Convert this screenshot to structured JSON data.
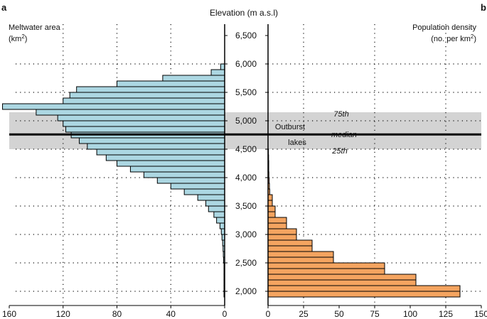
{
  "chart_data": [
    {
      "type": "bar",
      "orientation": "horizontal",
      "panel_label": "a",
      "title": "Meltwater area",
      "unit_base": "(km",
      "unit_sup": "2",
      "unit_end": ")",
      "xlim": [
        0,
        160
      ],
      "x_direction": "reversed",
      "xticks": [
        "160",
        "120",
        "80",
        "40",
        "0"
      ],
      "xtick_values": [
        160,
        120,
        80,
        40,
        0
      ],
      "color": "#acd7e2",
      "elevation_bins": [
        1950,
        2050,
        2150,
        2250,
        2350,
        2450,
        2550,
        2650,
        2750,
        2850,
        2950,
        3050,
        3150,
        3250,
        3350,
        3450,
        3550,
        3650,
        3750,
        3850,
        3950,
        4050,
        4150,
        4250,
        4350,
        4450,
        4550,
        4650,
        4750,
        4850,
        4950,
        5050,
        5150,
        5250,
        5350,
        5450,
        5550,
        5650,
        5750,
        5850,
        5950,
        6050
      ],
      "values": [
        0.5,
        0.5,
        0.5,
        0.5,
        0.5,
        0.5,
        0.8,
        1,
        1.2,
        1.5,
        2,
        2.5,
        3.5,
        6,
        8,
        12,
        14,
        20,
        30,
        40,
        50,
        60,
        70,
        80,
        88,
        95,
        102,
        108,
        114,
        118,
        120,
        124,
        140,
        165,
        120,
        115,
        110,
        80,
        46,
        10,
        3,
        0
      ]
    },
    {
      "type": "bar",
      "orientation": "horizontal",
      "panel_label": "b",
      "title": "Population density",
      "unit_base": "(no. per km",
      "unit_sup": "2",
      "unit_end": ")",
      "xlim": [
        0,
        150
      ],
      "xticks": [
        "0",
        "25",
        "50",
        "75",
        "100",
        "125",
        "150"
      ],
      "xtick_values": [
        0,
        25,
        50,
        75,
        100,
        125,
        150
      ],
      "color": "#f4a460",
      "elevation_bins": [
        1950,
        2050,
        2150,
        2250,
        2350,
        2450,
        2550,
        2650,
        2750,
        2850,
        2950,
        3050,
        3150,
        3250,
        3350,
        3450,
        3550,
        3650,
        3750,
        3850,
        3950,
        4050,
        4150,
        4250,
        4350,
        4450
      ],
      "values": [
        135,
        135,
        104,
        104,
        82,
        82,
        46,
        46,
        31,
        31,
        20,
        20,
        13,
        13,
        5,
        5,
        3,
        3,
        1.2,
        1,
        0.8,
        0.6,
        0.5,
        0.5,
        0.4,
        0.3
      ]
    }
  ],
  "y_axis": {
    "title": "Elevation (m a.s.l)",
    "range": [
      1800,
      6800
    ],
    "ticks": [
      "2,000",
      "2,500",
      "3,000",
      "3,500",
      "4,000",
      "4,500",
      "5,000",
      "5,500",
      "6,000",
      "6,500"
    ],
    "tick_values": [
      2000,
      2500,
      3000,
      3500,
      4000,
      4500,
      5000,
      5500,
      6000,
      6500
    ]
  },
  "outburst_lakes": {
    "label_line1": "Outburst",
    "label_line2": "lakes",
    "p25": 4500,
    "median": 4760,
    "p75": 5150,
    "p25_label": "25th",
    "median_label": "median",
    "p75_label": "75th",
    "band_color": "#d3d3d3"
  }
}
